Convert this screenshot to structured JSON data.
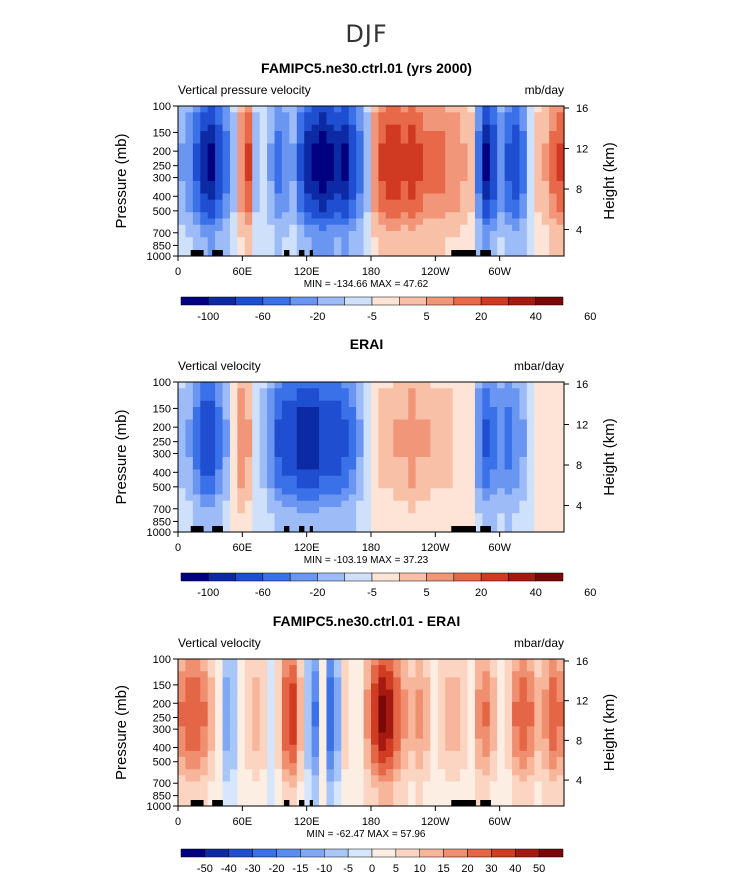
{
  "figure": {
    "title": "DJF"
  },
  "colors": [
    "#000080",
    "#0d2aa5",
    "#1f4fd0",
    "#3a70e8",
    "#6a96f2",
    "#9dbcf7",
    "#cfe0fb",
    "#fde4d6",
    "#f8c0a6",
    "#f2967a",
    "#e8684a",
    "#d13a22",
    "#a51a10",
    "#7a0808"
  ],
  "chart_data": [
    {
      "type": "heatmap",
      "title": "FAMIPC5.ne30.ctrl.01 (yrs 2000)",
      "variable": "Vertical pressure velocity",
      "units": "mb/day",
      "ylabel": "Pressure (mb)",
      "ylabel_right": "Height (km)",
      "x_ticks": [
        "0",
        "60E",
        "120E",
        "180",
        "120W",
        "60W"
      ],
      "y_ticks": [
        "100",
        "150",
        "200",
        "250",
        "300",
        "400",
        "500",
        "700",
        "850",
        "1000"
      ],
      "y2_ticks": [
        "16",
        "12",
        "8",
        "4"
      ],
      "stats": "MIN = -134.66  MAX =  47.62",
      "levels": [
        "-100",
        "-60",
        "-20",
        "-5",
        "5",
        "20",
        "40",
        "60"
      ],
      "profile": [
        -0.3,
        -0.4,
        -0.6,
        -0.8,
        -0.9,
        -0.7,
        -0.5,
        -0.2,
        0.4,
        0.6,
        -0.2,
        -0.1,
        -0.3,
        -0.5,
        -0.4,
        -0.3,
        -0.6,
        -0.8,
        -0.9,
        -1.0,
        -0.9,
        -0.8,
        -0.9,
        -0.7,
        -0.5,
        -0.2,
        0.4,
        0.6,
        0.7,
        0.7,
        0.6,
        0.7,
        0.6,
        0.5,
        0.5,
        0.5,
        0.4,
        0.4,
        0.3,
        0.2,
        -0.5,
        -0.9,
        -0.7,
        -0.4,
        -0.6,
        -0.7,
        -0.5,
        -0.1,
        0.2,
        0.3,
        0.5,
        0.6
      ]
    },
    {
      "type": "heatmap",
      "title": "ERAI",
      "variable": "Vertical velocity",
      "units": "mbar/day",
      "ylabel": "Pressure (mb)",
      "ylabel_right": "Height (km)",
      "x_ticks": [
        "0",
        "60E",
        "120E",
        "180",
        "120W",
        "60W"
      ],
      "y_ticks": [
        "100",
        "150",
        "200",
        "250",
        "300",
        "400",
        "500",
        "700",
        "850",
        "1000"
      ],
      "y2_ticks": [
        "16",
        "12",
        "8",
        "4"
      ],
      "stats": "MIN = -103.19  MAX =  37.23",
      "levels": [
        "-100",
        "-60",
        "-20",
        "-5",
        "5",
        "20",
        "40",
        "60"
      ],
      "profile": [
        -0.2,
        -0.3,
        -0.5,
        -0.7,
        -0.7,
        -0.5,
        -0.3,
        0.1,
        0.4,
        0.3,
        -0.1,
        -0.2,
        -0.4,
        -0.6,
        -0.7,
        -0.7,
        -0.8,
        -0.8,
        -0.8,
        -0.7,
        -0.7,
        -0.7,
        -0.6,
        -0.5,
        -0.3,
        -0.1,
        0.1,
        0.2,
        0.2,
        0.3,
        0.3,
        0.4,
        0.3,
        0.3,
        0.2,
        0.2,
        0.2,
        0.1,
        0.1,
        0.0,
        -0.4,
        -0.6,
        -0.5,
        -0.4,
        -0.5,
        -0.4,
        -0.3,
        -0.1,
        0.0,
        0.1,
        0.1,
        0.0
      ]
    },
    {
      "type": "heatmap",
      "title": "FAMIPC5.ne30.ctrl.01 - ERAI",
      "variable": "Vertical velocity",
      "units": "mbar/day",
      "ylabel": "Pressure (mb)",
      "ylabel_right": "Height (km)",
      "x_ticks": [
        "0",
        "60E",
        "120E",
        "180",
        "120W",
        "60W"
      ],
      "y_ticks": [
        "100",
        "150",
        "200",
        "250",
        "300",
        "400",
        "500",
        "700",
        "850",
        "1000"
      ],
      "y2_ticks": [
        "16",
        "12",
        "8",
        "4"
      ],
      "stats": "MIN = -62.47  MAX =  57.96",
      "levels": [
        "-50",
        "-40",
        "-30",
        "-20",
        "-15",
        "-10",
        "-5",
        "0",
        "5",
        "10",
        "15",
        "20",
        "30",
        "40",
        "50"
      ],
      "profile": [
        0.5,
        0.6,
        0.6,
        0.5,
        0.3,
        0.1,
        -0.3,
        -0.2,
        0.1,
        0.2,
        0.3,
        0.2,
        -0.1,
        0.2,
        0.6,
        0.7,
        0.3,
        -0.2,
        -0.5,
        0.1,
        -0.6,
        -0.3,
        0.2,
        0.0,
        0.1,
        0.4,
        0.7,
        0.9,
        0.8,
        0.6,
        0.4,
        0.3,
        0.4,
        0.3,
        0.1,
        0.2,
        0.3,
        0.3,
        0.2,
        0.1,
        0.4,
        0.5,
        0.3,
        0.1,
        0.2,
        0.5,
        0.6,
        0.5,
        0.3,
        0.4,
        0.6,
        0.5
      ]
    }
  ]
}
